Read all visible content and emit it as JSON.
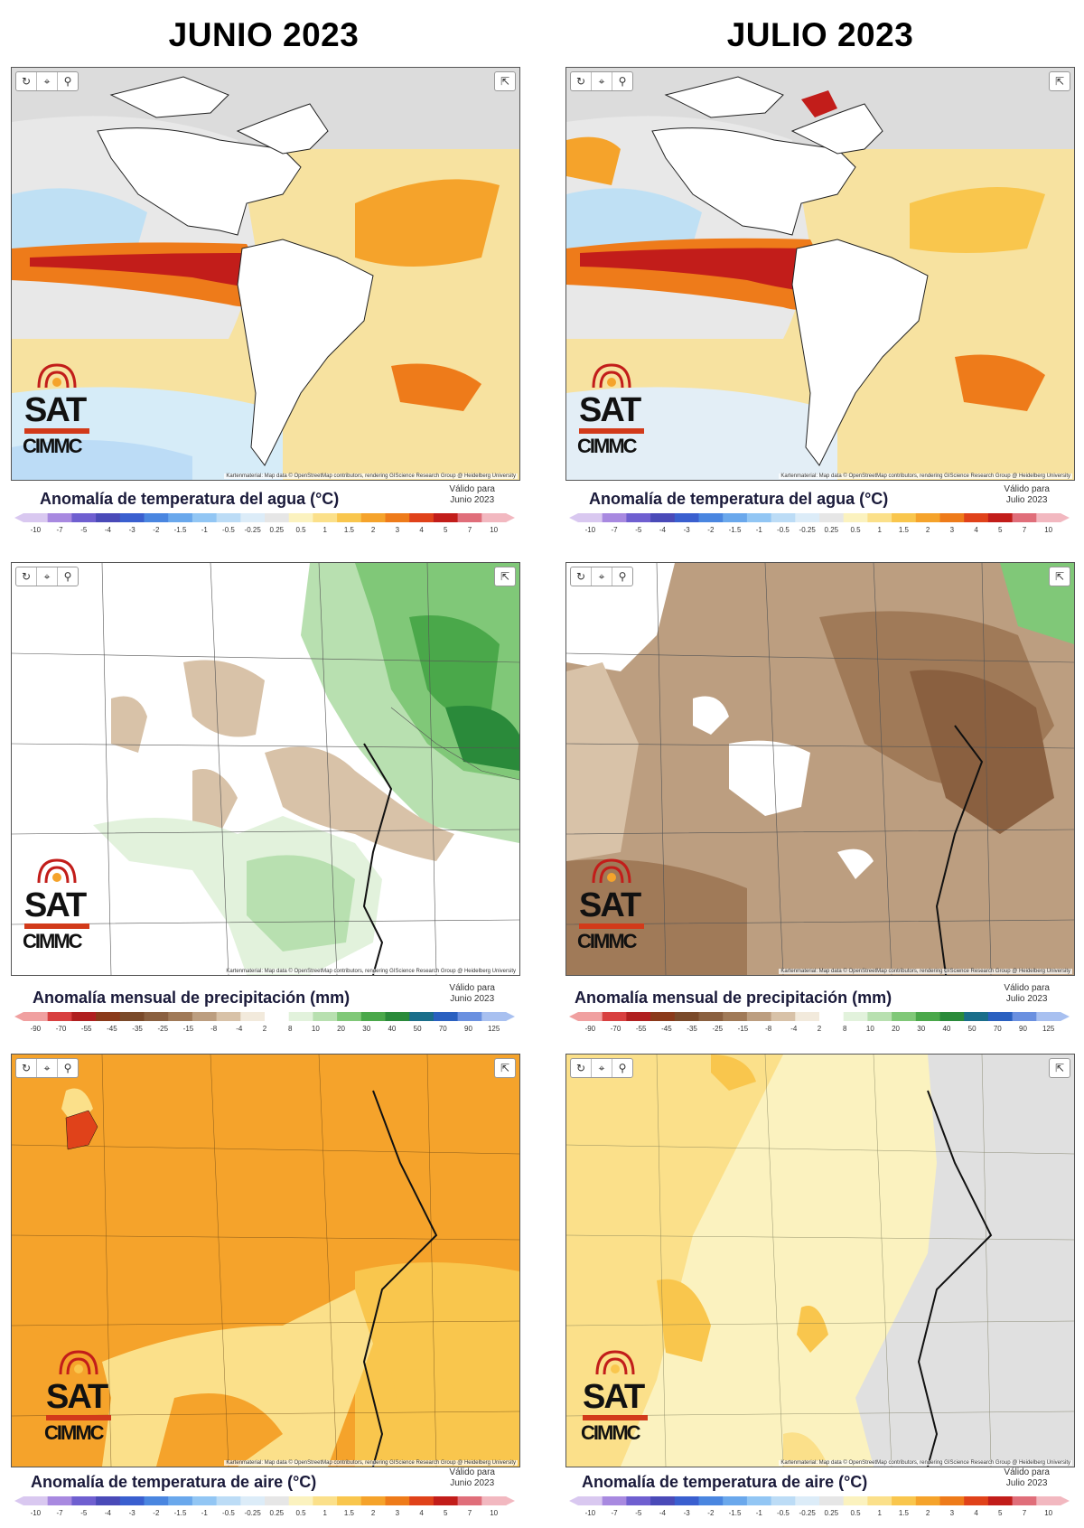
{
  "columns": [
    {
      "title": "JUNIO 2023",
      "valid_label": "Válido para",
      "valid_period": "Junio 2023"
    },
    {
      "title": "JULIO 2023",
      "valid_label": "Válido para",
      "valid_period": "Julio 2023"
    }
  ],
  "legends": {
    "sst": {
      "title": "Anomalía de temperatura del agua (°C)",
      "ticks": [
        "-10",
        "-7",
        "-5",
        "-4",
        "-3",
        "-2",
        "-1.5",
        "-1",
        "-0.5",
        "-0.25",
        "0.25",
        "0.5",
        "1",
        "1.5",
        "2",
        "3",
        "4",
        "5",
        "7",
        "10"
      ],
      "colors": [
        "#d9c8f0",
        "#a889e0",
        "#6f5fd0",
        "#4a4ab8",
        "#3a5fcf",
        "#4a86e0",
        "#6aa8ec",
        "#92c6f4",
        "#bcdcf6",
        "#dcecf8",
        "#e6e6e6",
        "#fbf2bf",
        "#fbe08a",
        "#f9c64d",
        "#f5a32b",
        "#ee7b1a",
        "#e0421a",
        "#c21d1a",
        "#e06e7a",
        "#f2b8c0"
      ]
    },
    "precip": {
      "title": "Anomalía mensual de precipitación (mm)",
      "ticks": [
        "-90",
        "-70",
        "-55",
        "-45",
        "-35",
        "-25",
        "-15",
        "-8",
        "-4",
        "2",
        "8",
        "10",
        "20",
        "30",
        "40",
        "50",
        "70",
        "90",
        "125"
      ],
      "colors": [
        "#f0a0a0",
        "#d84040",
        "#b02020",
        "#8a3a1a",
        "#7a4a2a",
        "#8a6040",
        "#a07a58",
        "#bc9e80",
        "#d8c2a8",
        "#f2eadc",
        "#ffffff",
        "#e2f2dc",
        "#b8e0b0",
        "#80c878",
        "#4aa84a",
        "#2a8a3a",
        "#1a6e8a",
        "#2a60c0",
        "#6a90e0",
        "#a8c0f0"
      ]
    },
    "air": {
      "title": "Anomalía de temperatura de aire (°C)",
      "ticks": [
        "-10",
        "-7",
        "-5",
        "-4",
        "-3",
        "-2",
        "-1.5",
        "-1",
        "-0.5",
        "-0.25",
        "0.25",
        "0.5",
        "1",
        "1.5",
        "2",
        "3",
        "4",
        "5",
        "7",
        "10"
      ],
      "colors": [
        "#d9c8f0",
        "#a889e0",
        "#6f5fd0",
        "#4a4ab8",
        "#3a5fcf",
        "#4a86e0",
        "#6aa8ec",
        "#92c6f4",
        "#bcdcf6",
        "#dcecf8",
        "#e6e6e6",
        "#fbf2bf",
        "#fbe08a",
        "#f9c64d",
        "#f5a32b",
        "#ee7b1a",
        "#e0421a",
        "#c21d1a",
        "#e06e7a",
        "#f2b8c0"
      ]
    }
  },
  "toolbar": {
    "icons": [
      "refresh-icon",
      "locate-icon",
      "search-icon",
      "share-icon"
    ],
    "glyphs": [
      "↻",
      "⌖",
      "⚲",
      "⇱"
    ]
  },
  "attribution": "Kartenmaterial: Map data © OpenStreetMap contributors, rendering GIScience Research Group @ Heidelberg University",
  "logo": {
    "sat": "SAT",
    "cimmc": "CIMMC"
  }
}
